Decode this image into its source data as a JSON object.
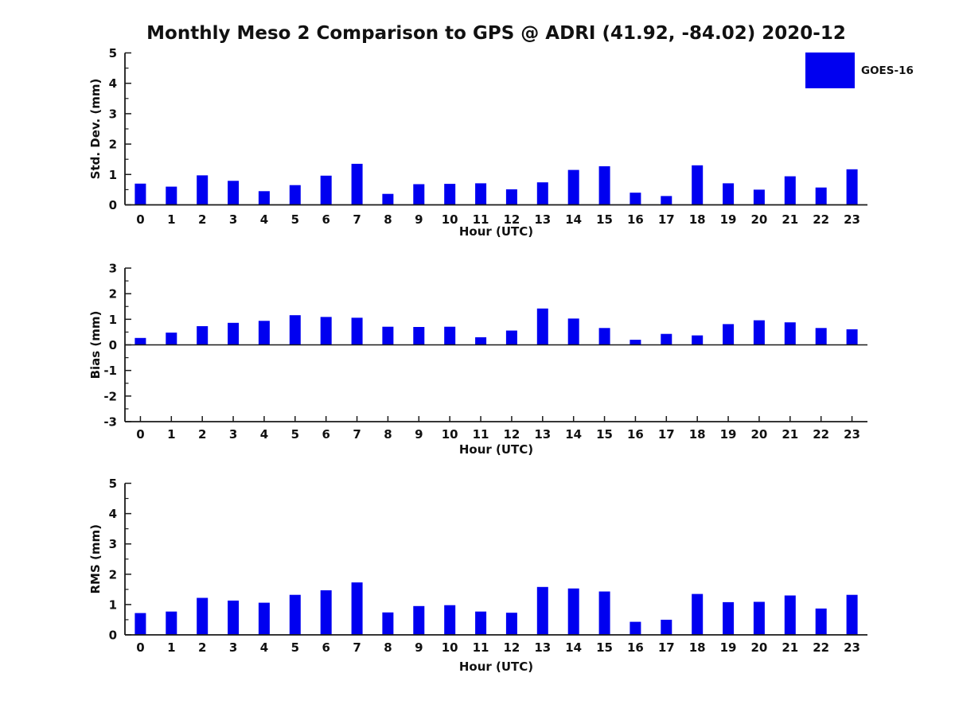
{
  "title": "Monthly Meso 2 Comparison to GPS @ ADRI (41.92, -84.02) 2020-12",
  "legend": {
    "label": "GOES-16",
    "color": "#0000f0",
    "position": "top-right"
  },
  "colors": {
    "bar": "#0000f0",
    "axis": "#1a1a1a",
    "text": "#111111",
    "background": "#ffffff"
  },
  "chart_data": [
    {
      "type": "bar",
      "name": "std-dev-subplot",
      "title": "",
      "xlabel": "Hour (UTC)",
      "ylabel": "Std. Dev. (mm)",
      "categories": [
        "0",
        "1",
        "2",
        "3",
        "4",
        "5",
        "6",
        "7",
        "8",
        "9",
        "10",
        "11",
        "12",
        "13",
        "14",
        "15",
        "16",
        "17",
        "18",
        "19",
        "20",
        "21",
        "22",
        "23"
      ],
      "series": [
        {
          "name": "GOES-16",
          "values": [
            0.7,
            0.6,
            0.97,
            0.79,
            0.45,
            0.65,
            0.96,
            1.35,
            0.36,
            0.68,
            0.69,
            0.71,
            0.51,
            0.74,
            1.15,
            1.27,
            0.4,
            0.29,
            1.3,
            0.71,
            0.5,
            0.94,
            0.57,
            1.17
          ]
        }
      ],
      "ylim": [
        0,
        5
      ],
      "ytick_step": 1,
      "yminor_step": 0.5,
      "grid": false,
      "legend_position": "none"
    },
    {
      "type": "bar",
      "name": "bias-subplot",
      "title": "",
      "xlabel": "Hour (UTC)",
      "ylabel": "Bias (mm)",
      "categories": [
        "0",
        "1",
        "2",
        "3",
        "4",
        "5",
        "6",
        "7",
        "8",
        "9",
        "10",
        "11",
        "12",
        "13",
        "14",
        "15",
        "16",
        "17",
        "18",
        "19",
        "20",
        "21",
        "22",
        "23"
      ],
      "series": [
        {
          "name": "GOES-16",
          "values": [
            0.27,
            0.48,
            0.73,
            0.86,
            0.94,
            1.16,
            1.09,
            1.06,
            0.71,
            0.7,
            0.71,
            0.3,
            0.56,
            1.42,
            1.03,
            0.66,
            0.2,
            0.43,
            0.37,
            0.81,
            0.96,
            0.88,
            0.66,
            0.61
          ]
        }
      ],
      "ylim": [
        -3,
        3
      ],
      "ytick_step": 1,
      "yminor_step": 0.5,
      "grid": false,
      "legend_position": "none"
    },
    {
      "type": "bar",
      "name": "rms-subplot",
      "title": "",
      "xlabel": "Hour (UTC)",
      "ylabel": "RMS (mm)",
      "categories": [
        "0",
        "1",
        "2",
        "3",
        "4",
        "5",
        "6",
        "7",
        "8",
        "9",
        "10",
        "11",
        "12",
        "13",
        "14",
        "15",
        "16",
        "17",
        "18",
        "19",
        "20",
        "21",
        "22",
        "23"
      ],
      "series": [
        {
          "name": "GOES-16",
          "values": [
            0.72,
            0.77,
            1.22,
            1.13,
            1.06,
            1.32,
            1.47,
            1.73,
            0.74,
            0.95,
            0.98,
            0.77,
            0.73,
            1.58,
            1.53,
            1.43,
            0.43,
            0.5,
            1.35,
            1.08,
            1.09,
            1.3,
            0.87,
            1.32
          ]
        }
      ],
      "ylim": [
        0,
        5
      ],
      "ytick_step": 1,
      "yminor_step": 0.5,
      "grid": false,
      "legend_position": "none"
    }
  ]
}
